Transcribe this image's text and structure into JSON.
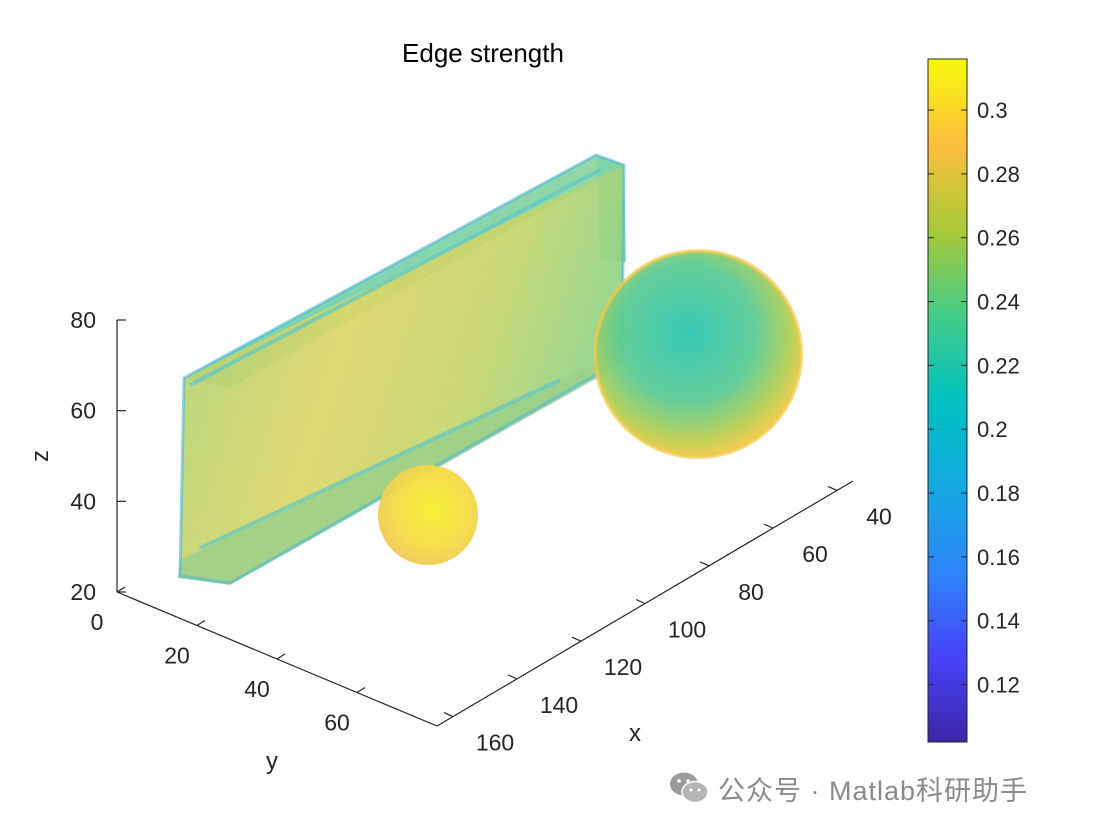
{
  "chart_data": {
    "type": "3d-isosurface",
    "title": "Edge strength",
    "xlabel": "x",
    "ylabel": "y",
    "zlabel": "z",
    "x_ticks": [
      40,
      60,
      80,
      100,
      120,
      140,
      160
    ],
    "y_ticks": [
      0,
      20,
      40,
      60
    ],
    "z_ticks": [
      20,
      40,
      60,
      80
    ],
    "xlim": [
      35,
      165
    ],
    "ylim": [
      0,
      80
    ],
    "zlim": [
      20,
      80
    ],
    "grid": false,
    "colormap": "parula",
    "colorbar": {
      "location": "right",
      "range": [
        0.102,
        0.316
      ],
      "ticks": [
        0.12,
        0.14,
        0.16,
        0.18,
        0.2,
        0.22,
        0.24,
        0.26,
        0.28,
        0.3
      ]
    },
    "objects": [
      {
        "kind": "slab",
        "x": [
          37,
          163
        ],
        "y": [
          10,
          22
        ],
        "z": [
          22,
          66
        ],
        "color_value": 0.255
      },
      {
        "kind": "sphere",
        "center": [
          50,
          64,
          55
        ],
        "radius": 13,
        "color_value": 0.225
      },
      {
        "kind": "sphere",
        "center": [
          118,
          52,
          38
        ],
        "radius": 6.5,
        "color_value": 0.28
      }
    ]
  },
  "watermark": {
    "icon": "wechat-icon",
    "text": "公众号 · Matlab科研助手"
  }
}
